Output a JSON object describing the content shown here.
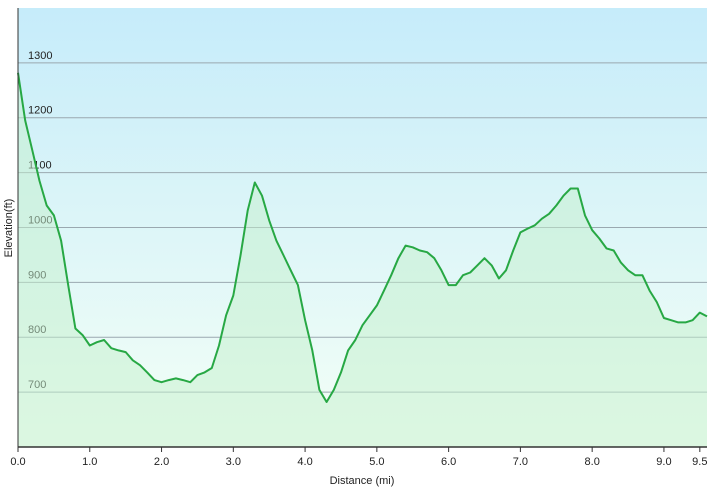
{
  "chart_data": {
    "type": "area",
    "x_label": "Distance  (mi)",
    "y_label": "Elevation(ft)",
    "x": [
      0,
      0.1,
      0.2,
      0.3,
      0.4,
      0.5,
      0.6,
      0.7,
      0.8,
      0.9,
      1.0,
      1.1,
      1.2,
      1.3,
      1.4,
      1.5,
      1.6,
      1.7,
      1.8,
      1.9,
      2.0,
      2.1,
      2.2,
      2.3,
      2.4,
      2.5,
      2.6,
      2.7,
      2.8,
      2.9,
      3.0,
      3.1,
      3.2,
      3.3,
      3.4,
      3.5,
      3.6,
      3.7,
      3.8,
      3.9,
      4.0,
      4.1,
      4.2,
      4.3,
      4.4,
      4.5,
      4.6,
      4.7,
      4.8,
      4.9,
      5.0,
      5.1,
      5.2,
      5.3,
      5.4,
      5.5,
      5.6,
      5.7,
      5.8,
      5.9,
      6.0,
      6.1,
      6.2,
      6.3,
      6.4,
      6.5,
      6.6,
      6.7,
      6.8,
      6.9,
      7.0,
      7.1,
      7.2,
      7.3,
      7.4,
      7.5,
      7.6,
      7.7,
      7.8,
      7.9,
      8.0,
      8.1,
      8.2,
      8.3,
      8.4,
      8.5,
      8.6,
      8.7,
      8.8,
      8.9,
      9.0,
      9.1,
      9.2,
      9.3,
      9.4,
      9.5,
      9.6
    ],
    "y": [
      1282,
      1195,
      1140,
      1085,
      1040,
      1022,
      976,
      895,
      816,
      804,
      785,
      791,
      795,
      780,
      776,
      773,
      758,
      749,
      736,
      722,
      718,
      722,
      725,
      722,
      718,
      731,
      736,
      744,
      785,
      840,
      876,
      949,
      1031,
      1082,
      1058,
      1013,
      976,
      949,
      922,
      895,
      831,
      776,
      704,
      682,
      704,
      736,
      776,
      795,
      822,
      840,
      858,
      885,
      913,
      944,
      967,
      964,
      958,
      955,
      944,
      922,
      895,
      895,
      913,
      918,
      931,
      944,
      931,
      907,
      922,
      958,
      991,
      998,
      1004,
      1016,
      1025,
      1040,
      1058,
      1071,
      1071,
      1022,
      995,
      980,
      962,
      958,
      936,
      922,
      913,
      913,
      885,
      864,
      835,
      831,
      827,
      827,
      831,
      845,
      838
    ],
    "color": "#27a844",
    "fill_color": "#c4f0cc",
    "xlim": [
      0,
      9.6
    ],
    "ylim": [
      600,
      1400
    ],
    "xticks": [
      {
        "value": 0,
        "label": "0.0"
      },
      {
        "value": 1,
        "label": "1.0"
      },
      {
        "value": 2,
        "label": "2.0"
      },
      {
        "value": 3,
        "label": "3.0"
      },
      {
        "value": 4,
        "label": "4.0"
      },
      {
        "value": 5,
        "label": "5.0"
      },
      {
        "value": 6,
        "label": "6.0"
      },
      {
        "value": 7,
        "label": "7.0"
      },
      {
        "value": 8,
        "label": "8.0"
      },
      {
        "value": 9,
        "label": "9.0"
      },
      9.5
    ],
    "yticks": [
      700,
      800,
      900,
      1000,
      1100,
      1200,
      1300
    ],
    "grid": true
  }
}
